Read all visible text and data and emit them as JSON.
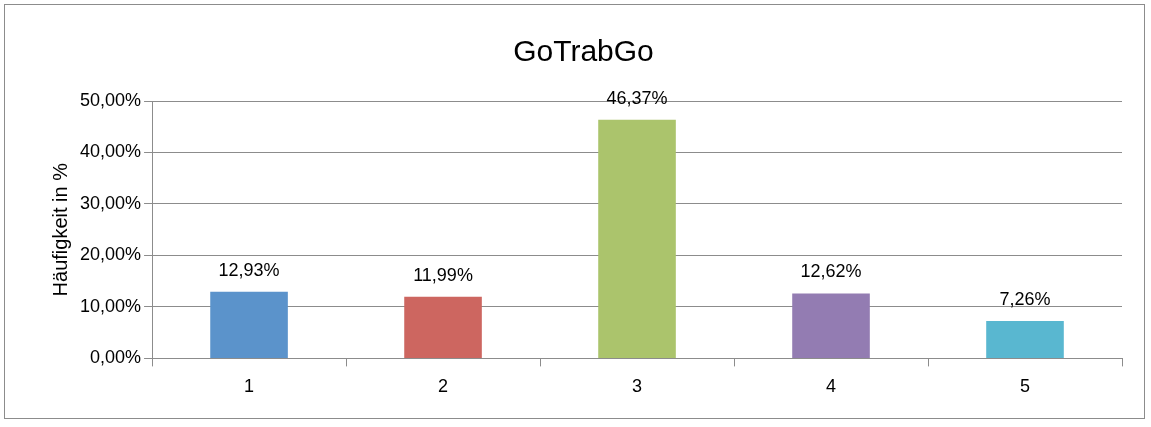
{
  "chart_data": {
    "type": "bar",
    "title": "GoTrabGo",
    "ylabel": "Häufigkeit in %",
    "categories": [
      "1",
      "2",
      "3",
      "4",
      "5"
    ],
    "values": [
      12.93,
      11.99,
      46.37,
      12.62,
      7.26
    ],
    "colors": [
      "#5b93cb",
      "#cd6660",
      "#abc46c",
      "#937cb2",
      "#59b7d0"
    ],
    "value_labels": [
      "12,93%",
      "11,99%",
      "46,37%",
      "12,62%",
      "7,26%"
    ],
    "ylim": [
      0,
      50
    ],
    "yticks": [
      {
        "value": 0,
        "label": "0,00%"
      },
      {
        "value": 10,
        "label": "10,00%"
      },
      {
        "value": 20,
        "label": "20,00%"
      },
      {
        "value": 30,
        "label": "30,00%"
      },
      {
        "value": 40,
        "label": "40,00%"
      },
      {
        "value": 50,
        "label": "50,00%"
      }
    ],
    "grid": "y",
    "legend": false
  }
}
